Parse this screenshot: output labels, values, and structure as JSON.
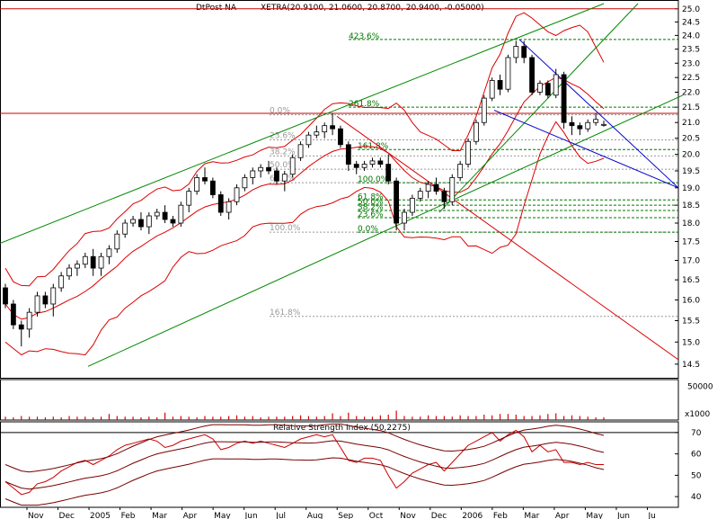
{
  "title": "DtPost NA",
  "quote": "XETRA(20.9100, 21.0600, 20.8700, 20.9400, -0.05000)",
  "volume_scale_label": "x1000",
  "rsi_title": "Relative Strength Index (50,2275)",
  "colors": {
    "band": "#dd0000",
    "channel": "#008800",
    "fib_green": "#007700",
    "fib_gray": "#999999",
    "down_trend": "#0000cc",
    "volume": "#dd0000",
    "rsi": "#cc0000",
    "candle_up": "#ffffff",
    "candle_down": "#000000",
    "horizontal_level": "#cc0000"
  },
  "chart_data": [
    {
      "type": "candlestick",
      "name": "price",
      "y_scale": "log",
      "ylim": [
        14.2,
        25.2
      ],
      "yticks": [
        "14.5",
        "15.0",
        "15.5",
        "16.0",
        "16.5",
        "17.0",
        "17.5",
        "18.0",
        "18.5",
        "19.0",
        "19.5",
        "20.0",
        "20.5",
        "21.0",
        "21.5",
        "22.0",
        "22.5",
        "23.0",
        "23.5",
        "24.0",
        "24.5",
        "25.0"
      ],
      "xticks": [
        "Nov",
        "Dec",
        "2005",
        "Feb",
        "Mar",
        "Apr",
        "May",
        "Jun",
        "Jul",
        "Aug",
        "Sep",
        "Oct",
        "Nov",
        "Dec",
        "2006",
        "Feb",
        "Mar",
        "Apr",
        "May",
        "Jun",
        "Ju"
      ],
      "x_weeks": 76,
      "candles": [
        [
          16.3,
          16.4,
          15.8,
          15.9
        ],
        [
          15.9,
          16.0,
          15.3,
          15.4
        ],
        [
          15.4,
          15.5,
          14.9,
          15.3
        ],
        [
          15.3,
          15.8,
          15.1,
          15.7
        ],
        [
          15.7,
          16.2,
          15.6,
          16.1
        ],
        [
          16.1,
          16.2,
          15.8,
          15.9
        ],
        [
          15.9,
          16.4,
          15.6,
          16.3
        ],
        [
          16.3,
          16.7,
          16.2,
          16.6
        ],
        [
          16.6,
          16.9,
          16.5,
          16.8
        ],
        [
          16.8,
          17.0,
          16.6,
          16.9
        ],
        [
          16.9,
          17.2,
          16.8,
          17.1
        ],
        [
          17.1,
          17.3,
          16.6,
          16.8
        ],
        [
          16.8,
          17.2,
          16.6,
          17.1
        ],
        [
          17.1,
          17.4,
          16.9,
          17.3
        ],
        [
          17.3,
          17.8,
          17.2,
          17.7
        ],
        [
          17.7,
          18.1,
          17.6,
          18.0
        ],
        [
          18.0,
          18.2,
          17.9,
          18.1
        ],
        [
          18.1,
          18.3,
          17.8,
          17.9
        ],
        [
          17.9,
          18.3,
          17.7,
          18.2
        ],
        [
          18.2,
          18.4,
          18.1,
          18.3
        ],
        [
          18.3,
          18.5,
          18.0,
          18.1
        ],
        [
          18.1,
          18.2,
          17.9,
          18.0
        ],
        [
          18.0,
          18.6,
          17.9,
          18.5
        ],
        [
          18.5,
          19.0,
          18.3,
          18.9
        ],
        [
          18.9,
          19.4,
          18.8,
          19.3
        ],
        [
          19.3,
          19.6,
          19.1,
          19.2
        ],
        [
          19.2,
          19.3,
          18.7,
          18.8
        ],
        [
          18.8,
          18.9,
          18.2,
          18.3
        ],
        [
          18.3,
          18.7,
          18.1,
          18.6
        ],
        [
          18.6,
          19.1,
          18.5,
          19.0
        ],
        [
          19.0,
          19.4,
          18.9,
          19.3
        ],
        [
          19.3,
          19.6,
          19.1,
          19.5
        ],
        [
          19.5,
          19.7,
          19.3,
          19.6
        ],
        [
          19.6,
          19.8,
          19.4,
          19.5
        ],
        [
          19.5,
          19.6,
          19.1,
          19.2
        ],
        [
          19.2,
          19.5,
          18.9,
          19.4
        ],
        [
          19.4,
          20.0,
          19.3,
          19.9
        ],
        [
          19.9,
          20.4,
          19.8,
          20.3
        ],
        [
          20.3,
          20.7,
          20.2,
          20.6
        ],
        [
          20.6,
          20.9,
          20.5,
          20.7
        ],
        [
          20.7,
          21.0,
          20.5,
          20.9
        ],
        [
          20.9,
          21.3,
          20.6,
          20.8
        ],
        [
          20.8,
          20.9,
          20.2,
          20.3
        ],
        [
          20.3,
          20.4,
          19.5,
          19.7
        ],
        [
          19.7,
          19.8,
          19.4,
          19.6
        ],
        [
          19.6,
          19.8,
          19.5,
          19.7
        ],
        [
          19.7,
          19.9,
          19.6,
          19.8
        ],
        [
          19.8,
          19.9,
          19.6,
          19.7
        ],
        [
          19.7,
          20.0,
          19.1,
          19.2
        ],
        [
          19.2,
          19.3,
          17.8,
          18.0
        ],
        [
          18.0,
          18.4,
          17.8,
          18.3
        ],
        [
          18.3,
          18.8,
          18.2,
          18.7
        ],
        [
          18.7,
          19.0,
          18.6,
          18.9
        ],
        [
          18.9,
          19.2,
          18.7,
          19.1
        ],
        [
          19.1,
          19.3,
          18.8,
          18.9
        ],
        [
          18.9,
          19.0,
          18.4,
          18.6
        ],
        [
          18.6,
          19.4,
          18.5,
          19.3
        ],
        [
          19.3,
          19.8,
          19.2,
          19.7
        ],
        [
          19.7,
          20.5,
          19.6,
          20.4
        ],
        [
          20.4,
          21.1,
          20.3,
          21.0
        ],
        [
          21.0,
          21.9,
          20.9,
          21.8
        ],
        [
          21.8,
          22.5,
          21.7,
          22.4
        ],
        [
          22.4,
          22.6,
          21.9,
          22.1
        ],
        [
          22.1,
          23.3,
          22.0,
          23.2
        ],
        [
          23.2,
          23.8,
          23.0,
          23.6
        ],
        [
          23.6,
          23.8,
          23.0,
          23.2
        ],
        [
          23.2,
          23.3,
          21.9,
          22.0
        ],
        [
          22.0,
          22.4,
          21.9,
          22.3
        ],
        [
          22.3,
          22.4,
          21.8,
          21.9
        ],
        [
          21.9,
          22.8,
          21.8,
          22.6
        ],
        [
          22.6,
          22.7,
          20.8,
          21.0
        ],
        [
          21.0,
          21.2,
          20.6,
          20.9
        ],
        [
          20.9,
          21.0,
          20.6,
          20.8
        ],
        [
          20.8,
          21.1,
          20.7,
          21.0
        ],
        [
          21.0,
          21.3,
          20.9,
          21.1
        ],
        [
          20.91,
          21.06,
          20.87,
          20.94
        ]
      ],
      "fib_levels_2005": [
        {
          "label": "0.0%",
          "value": 21.25
        },
        {
          "label": "23.6%",
          "value": 20.45
        },
        {
          "label": "38.2%",
          "value": 19.95
        },
        {
          "label": "50.0%",
          "value": 19.55
        },
        {
          "label": "61.8%",
          "value": 19.15
        },
        {
          "label": "100.0%",
          "value": 17.75
        },
        {
          "label": "161.8%",
          "value": 15.6
        }
      ],
      "fib_levels_correction": [
        {
          "label": "423.6%",
          "value": 23.85
        },
        {
          "label": "261.8%",
          "value": 21.5
        },
        {
          "label": "161.8%",
          "value": 20.15
        },
        {
          "label": "100.0%",
          "value": 19.15
        },
        {
          "label": "61.8%",
          "value": 18.65
        },
        {
          "label": "50.0%",
          "value": 18.5
        },
        {
          "label": "38.2%",
          "value": 18.35
        },
        {
          "label": "23.6%",
          "value": 18.15
        },
        {
          "label": "0.0%",
          "value": 17.75
        }
      ],
      "horizontal_levels": [
        25.0,
        21.3
      ]
    },
    {
      "type": "bar",
      "name": "volume",
      "ylabel": "x1000",
      "yticks": [
        "50000"
      ],
      "ylim": [
        0,
        60000
      ],
      "values": [
        5000,
        4000,
        6000,
        5000,
        5000,
        4000,
        5000,
        4000,
        6000,
        5000,
        5000,
        4000,
        5000,
        9000,
        6000,
        5000,
        5000,
        4000,
        5000,
        4000,
        11000,
        5000,
        6000,
        5000,
        4000,
        6000,
        5000,
        5000,
        6000,
        7000,
        5000,
        6000,
        4000,
        5000,
        5000,
        5000,
        6000,
        7000,
        6000,
        5000,
        6000,
        10000,
        6000,
        11000,
        6000,
        5000,
        5000,
        7000,
        8000,
        14000,
        6000,
        5000,
        5000,
        7000,
        6000,
        6000,
        5000,
        7000,
        6000,
        6000,
        8000,
        7000,
        9000,
        9000,
        8000,
        6000,
        6000,
        7000,
        9000,
        10000,
        6000,
        7000,
        6000,
        5000,
        4000,
        4000
      ]
    },
    {
      "type": "line",
      "name": "rsi",
      "title": "Relative Strength Index (50,2275)",
      "ylim": [
        35,
        75
      ],
      "yticks": [
        "40",
        "50",
        "60",
        "70"
      ],
      "values": [
        47,
        44,
        41,
        42,
        46,
        47,
        49,
        52,
        54,
        56,
        57,
        55,
        57,
        59,
        62,
        64,
        65,
        66,
        67,
        66,
        63,
        64,
        66,
        67,
        68,
        69,
        67,
        62,
        63,
        65,
        66,
        65,
        66,
        65,
        64,
        63,
        65,
        67,
        68,
        69,
        68,
        69,
        63,
        57,
        56,
        58,
        58,
        57,
        50,
        44,
        47,
        51,
        53,
        55,
        56,
        52,
        56,
        60,
        64,
        66,
        68,
        70,
        66,
        69,
        71,
        68,
        61,
        64,
        61,
        62,
        56,
        56,
        55,
        56,
        55,
        55
      ]
    }
  ]
}
